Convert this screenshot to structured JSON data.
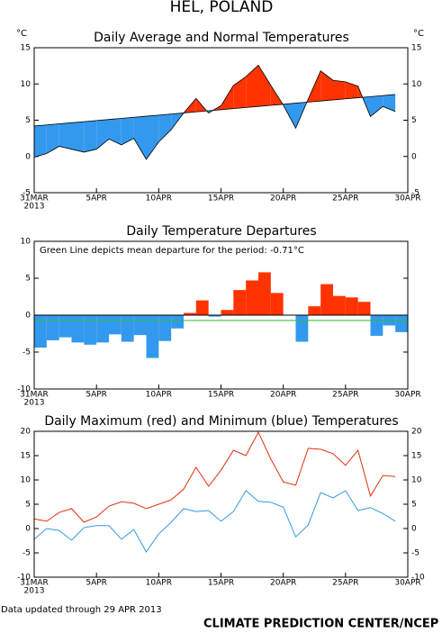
{
  "header": {
    "title": "HEL, POLAND"
  },
  "footer": {
    "updated": "Data updated through 29 APR 2013",
    "credit": "CLIMATE PREDICTION CENTER/NCEP"
  },
  "chart_data": [
    {
      "type": "area",
      "title": "Daily Average and Normal Temperatures",
      "y_unit": "°C",
      "x": [
        "2013-03-31",
        "2013-04-01",
        "2013-04-02",
        "2013-04-03",
        "2013-04-04",
        "2013-04-05",
        "2013-04-06",
        "2013-04-07",
        "2013-04-08",
        "2013-04-09",
        "2013-04-10",
        "2013-04-11",
        "2013-04-12",
        "2013-04-13",
        "2013-04-14",
        "2013-04-15",
        "2013-04-16",
        "2013-04-17",
        "2013-04-18",
        "2013-04-19",
        "2013-04-20",
        "2013-04-21",
        "2013-04-22",
        "2013-04-23",
        "2013-04-24",
        "2013-04-25",
        "2013-04-26",
        "2013-04-27",
        "2013-04-28",
        "2013-04-29"
      ],
      "xlim": [
        "2013-03-31",
        "2013-04-30"
      ],
      "xticks": [
        {
          "value": "2013-03-31",
          "label": "31MAR"
        },
        {
          "value": "2013-04-05",
          "label": "5APR"
        },
        {
          "value": "2013-04-10",
          "label": "10APR"
        },
        {
          "value": "2013-04-15",
          "label": "15APR"
        },
        {
          "value": "2013-04-20",
          "label": "20APR"
        },
        {
          "value": "2013-04-25",
          "label": "25APR"
        },
        {
          "value": "2013-04-30",
          "label": "30APR"
        }
      ],
      "x_year": "2013",
      "ylim": [
        -5,
        15
      ],
      "yticks": [
        -5,
        0,
        5,
        10,
        15
      ],
      "yticks_right": true,
      "above_color": "#ff3300",
      "below_color": "#3399ee",
      "series": [
        {
          "color": "#000000",
          "values": [
            -0.1,
            0.4,
            1.4,
            1.0,
            0.6,
            1.0,
            2.4,
            1.6,
            2.5,
            -0.4,
            2.0,
            3.7,
            6.0,
            8.0,
            6.0,
            7.0,
            9.8,
            11.0,
            12.6,
            9.8,
            7.1,
            3.9,
            7.9,
            11.8,
            10.5,
            10.3,
            9.7,
            5.5,
            6.9,
            6.2
          ]
        },
        {
          "color": "#000000",
          "values": [
            4.2,
            4.35,
            4.5,
            4.65,
            4.8,
            4.95,
            5.1,
            5.25,
            5.4,
            5.55,
            5.7,
            5.85,
            6.0,
            6.15,
            6.3,
            6.45,
            6.6,
            6.75,
            6.9,
            7.05,
            7.2,
            7.35,
            7.5,
            7.65,
            7.8,
            7.95,
            8.1,
            8.25,
            8.4,
            8.55
          ]
        }
      ]
    },
    {
      "type": "bar",
      "title": "Daily Temperature Departures",
      "annotation": "Green Line depicts mean departure for the period:  -0.71°C",
      "x": [
        "2013-03-31",
        "2013-04-01",
        "2013-04-02",
        "2013-04-03",
        "2013-04-04",
        "2013-04-05",
        "2013-04-06",
        "2013-04-07",
        "2013-04-08",
        "2013-04-09",
        "2013-04-10",
        "2013-04-11",
        "2013-04-12",
        "2013-04-13",
        "2013-04-14",
        "2013-04-15",
        "2013-04-16",
        "2013-04-17",
        "2013-04-18",
        "2013-04-19",
        "2013-04-20",
        "2013-04-21",
        "2013-04-22",
        "2013-04-23",
        "2013-04-24",
        "2013-04-25",
        "2013-04-26",
        "2013-04-27",
        "2013-04-28",
        "2013-04-29"
      ],
      "xlim": [
        "2013-03-31",
        "2013-04-30"
      ],
      "xticks": [
        {
          "value": "2013-03-31",
          "label": "31MAR"
        },
        {
          "value": "2013-04-05",
          "label": "5APR"
        },
        {
          "value": "2013-04-10",
          "label": "10APR"
        },
        {
          "value": "2013-04-15",
          "label": "15APR"
        },
        {
          "value": "2013-04-20",
          "label": "20APR"
        },
        {
          "value": "2013-04-25",
          "label": "25APR"
        },
        {
          "value": "2013-04-30",
          "label": "30APR"
        }
      ],
      "x_year": "2013",
      "ylim": [
        -10,
        10
      ],
      "yticks": [
        -10,
        -5,
        0,
        5,
        10
      ],
      "yticks_right": false,
      "above_color": "#ff3300",
      "below_color": "#3399ee",
      "values": [
        -4.4,
        -3.4,
        -3.0,
        -3.7,
        -4.0,
        -3.7,
        -2.6,
        -3.6,
        -2.7,
        -5.8,
        -3.5,
        -1.8,
        0.3,
        2.0,
        -0.2,
        0.7,
        3.4,
        4.7,
        5.8,
        3.0,
        0.0,
        -3.6,
        1.2,
        4.2,
        2.6,
        2.4,
        1.8,
        -2.8,
        -1.4,
        -2.3
      ],
      "mean_line": -0.71,
      "mean_color": "#33bb33"
    },
    {
      "type": "line",
      "title": "Daily Maximum (red) and Minimum (blue) Temperatures",
      "x": [
        "2013-03-31",
        "2013-04-01",
        "2013-04-02",
        "2013-04-03",
        "2013-04-04",
        "2013-04-05",
        "2013-04-06",
        "2013-04-07",
        "2013-04-08",
        "2013-04-09",
        "2013-04-10",
        "2013-04-11",
        "2013-04-12",
        "2013-04-13",
        "2013-04-14",
        "2013-04-15",
        "2013-04-16",
        "2013-04-17",
        "2013-04-18",
        "2013-04-19",
        "2013-04-20",
        "2013-04-21",
        "2013-04-22",
        "2013-04-23",
        "2013-04-24",
        "2013-04-25",
        "2013-04-26",
        "2013-04-27",
        "2013-04-28",
        "2013-04-29"
      ],
      "xlim": [
        "2013-03-31",
        "2013-04-30"
      ],
      "xticks": [
        {
          "value": "2013-03-31",
          "label": "31MAR"
        },
        {
          "value": "2013-04-05",
          "label": "5APR"
        },
        {
          "value": "2013-04-10",
          "label": "10APR"
        },
        {
          "value": "2013-04-15",
          "label": "15APR"
        },
        {
          "value": "2013-04-20",
          "label": "20APR"
        },
        {
          "value": "2013-04-25",
          "label": "25APR"
        },
        {
          "value": "2013-04-30",
          "label": "30APR"
        }
      ],
      "x_year": "2013",
      "ylim": [
        -10,
        20
      ],
      "yticks": [
        -10,
        -5,
        0,
        5,
        10,
        15,
        20
      ],
      "yticks_right": true,
      "series": [
        {
          "color": "#dd3311",
          "values": [
            2.0,
            1.5,
            3.3,
            4.1,
            1.3,
            2.4,
            4.6,
            5.5,
            5.2,
            4.1,
            5.0,
            5.9,
            8.1,
            12.6,
            8.7,
            12.0,
            16.1,
            15.0,
            19.8,
            14.3,
            9.6,
            8.9,
            16.5,
            16.3,
            15.4,
            13.0,
            16.1,
            6.7,
            10.9,
            10.7
          ]
        },
        {
          "color": "#3399dd",
          "values": [
            -2.2,
            0.0,
            -0.4,
            -2.4,
            0.2,
            0.6,
            0.6,
            -2.2,
            -0.2,
            -4.8,
            -1.1,
            1.3,
            4.1,
            3.5,
            3.7,
            1.5,
            3.5,
            7.8,
            5.6,
            5.4,
            4.4,
            -1.7,
            0.7,
            7.4,
            6.3,
            7.8,
            3.7,
            4.3,
            3.1,
            1.5
          ]
        }
      ]
    }
  ]
}
